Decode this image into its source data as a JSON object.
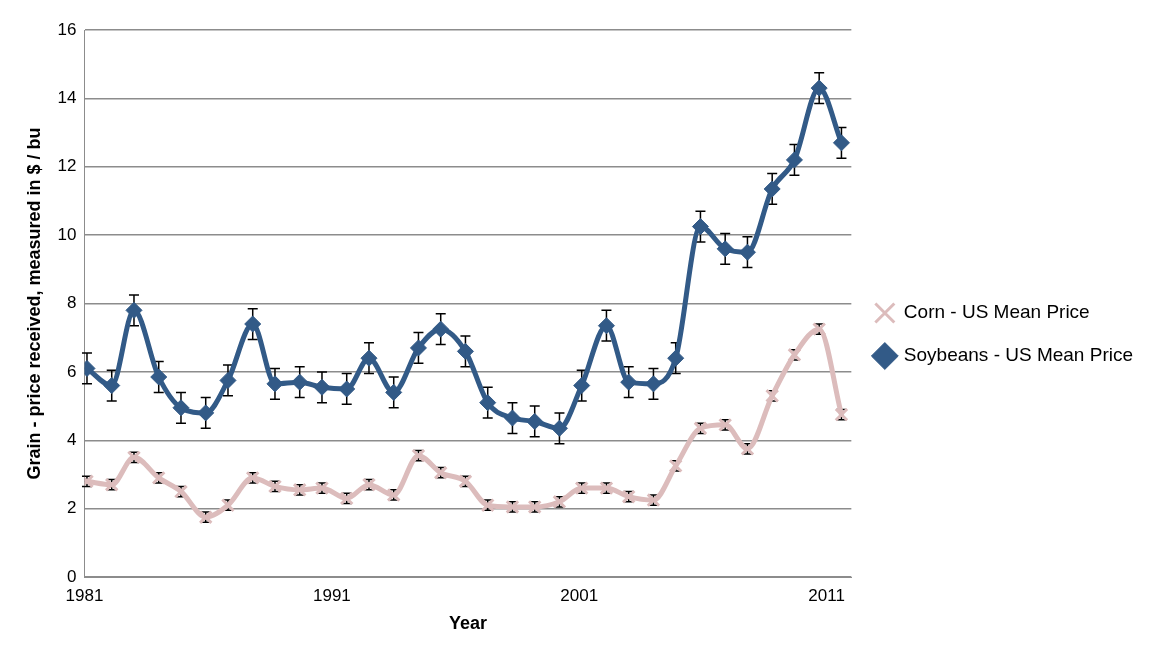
{
  "chart_data": {
    "type": "line",
    "xlabel": "Year",
    "ylabel": "Grain - price received, measured in $ / bu",
    "x": [
      1981.1,
      1982.1,
      1983.0,
      1984.0,
      1984.9,
      1985.9,
      1986.8,
      1987.8,
      1988.7,
      1989.7,
      1990.6,
      1991.6,
      1992.5,
      1993.5,
      1994.5,
      1995.4,
      1996.4,
      1997.3,
      1998.3,
      1999.2,
      2000.2,
      2001.1,
      2002.1,
      2003.0,
      2004.0,
      2004.9,
      2005.9,
      2006.9,
      2007.8,
      2008.8,
      2009.7,
      2010.7,
      2011.6
    ],
    "series": [
      {
        "name": "Corn - US Mean Price",
        "color": "#dcbcbc",
        "marker": "cross",
        "errors": [
          0.15,
          0.15,
          0.15,
          0.15,
          0.15,
          0.15,
          0.15,
          0.15,
          0.15,
          0.15,
          0.15,
          0.15,
          0.15,
          0.15,
          0.15,
          0.15,
          0.15,
          0.15,
          0.15,
          0.15,
          0.15,
          0.15,
          0.15,
          0.15,
          0.15,
          0.15,
          0.15,
          0.15,
          0.15,
          0.15,
          0.15,
          0.15,
          0.15
        ],
        "values": [
          2.8,
          2.7,
          3.5,
          2.9,
          2.5,
          1.75,
          2.1,
          2.9,
          2.65,
          2.55,
          2.6,
          2.3,
          2.7,
          2.4,
          3.55,
          3.05,
          2.8,
          2.1,
          2.05,
          2.05,
          2.2,
          2.6,
          2.6,
          2.35,
          2.25,
          3.25,
          4.35,
          4.45,
          3.75,
          5.3,
          6.5,
          7.25,
          4.75
        ]
      },
      {
        "name": "Soybeans - US Mean Price",
        "color": "#325a87",
        "marker": "diamond",
        "errors": [
          0.45,
          0.45,
          0.45,
          0.45,
          0.45,
          0.45,
          0.45,
          0.45,
          0.45,
          0.45,
          0.45,
          0.45,
          0.45,
          0.45,
          0.45,
          0.45,
          0.45,
          0.45,
          0.45,
          0.45,
          0.45,
          0.45,
          0.45,
          0.45,
          0.45,
          0.45,
          0.45,
          0.45,
          0.45,
          0.45,
          0.45,
          0.45,
          0.45
        ],
        "values": [
          6.1,
          5.6,
          7.8,
          5.85,
          4.95,
          4.8,
          5.75,
          7.4,
          5.65,
          5.7,
          5.55,
          5.5,
          6.4,
          5.4,
          6.7,
          7.25,
          6.6,
          5.1,
          4.65,
          4.55,
          4.35,
          5.6,
          7.35,
          5.7,
          5.65,
          6.4,
          10.25,
          9.6,
          9.5,
          11.35,
          12.2,
          14.3,
          12.7
        ]
      }
    ],
    "xlim": [
      1981,
      2012
    ],
    "xticks": [
      1981,
      1991,
      2001,
      2011
    ],
    "ylim": [
      0,
      16
    ],
    "yticks": [
      0,
      2,
      4,
      6,
      8,
      10,
      12,
      14,
      16
    ],
    "grid": "y",
    "legend": "right",
    "line_style": "solid"
  }
}
